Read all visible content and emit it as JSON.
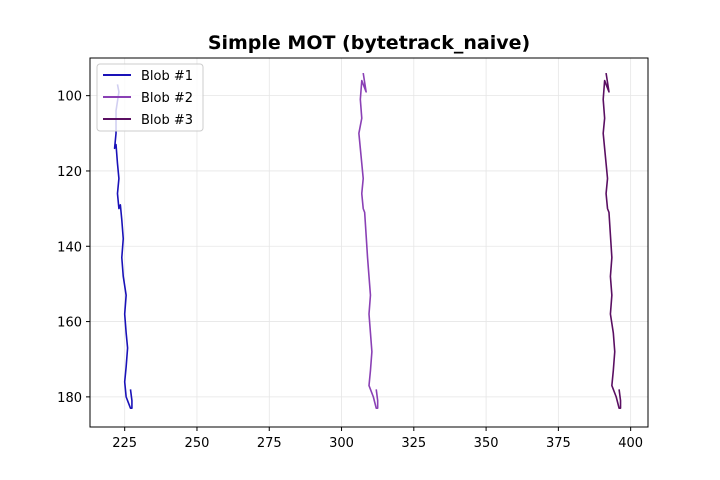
{
  "chart_data": {
    "type": "line",
    "title": "Simple MOT (bytetrack_naive)",
    "xlabel": "",
    "ylabel": "",
    "xlim": [
      213,
      406
    ],
    "ylim": [
      188,
      90
    ],
    "y_inverted": true,
    "grid": true,
    "legend_placement": "top-left",
    "x_ticks": [
      "225",
      "250",
      "275",
      "300",
      "325",
      "350",
      "375",
      "400"
    ],
    "y_ticks": [
      "100",
      "120",
      "140",
      "160",
      "180"
    ],
    "series": [
      {
        "name": "Blob #1",
        "color": "#1a12b8",
        "points": [
          [
            222.5,
            97
          ],
          [
            223.0,
            99
          ],
          [
            222.0,
            104
          ],
          [
            222.0,
            110
          ],
          [
            221.5,
            114
          ],
          [
            222.0,
            113
          ],
          [
            222.5,
            118
          ],
          [
            223.0,
            122
          ],
          [
            222.5,
            126
          ],
          [
            223.0,
            130
          ],
          [
            223.5,
            129
          ],
          [
            224.0,
            133
          ],
          [
            224.5,
            138
          ],
          [
            224.0,
            143
          ],
          [
            224.5,
            148
          ],
          [
            225.5,
            153
          ],
          [
            225.0,
            158
          ],
          [
            225.5,
            163
          ],
          [
            226.0,
            167
          ],
          [
            225.5,
            172
          ],
          [
            225.0,
            176
          ],
          [
            225.5,
            180
          ],
          [
            227.0,
            183
          ],
          [
            227.5,
            183
          ],
          [
            227.5,
            181
          ],
          [
            227.0,
            178
          ]
        ]
      },
      {
        "name": "Blob #2",
        "color": "#8a40b5",
        "points": [
          [
            307.5,
            94
          ],
          [
            308.5,
            99
          ],
          [
            307.0,
            96
          ],
          [
            306.5,
            101
          ],
          [
            307.0,
            106
          ],
          [
            306.0,
            110
          ],
          [
            306.5,
            114
          ],
          [
            307.0,
            118
          ],
          [
            307.5,
            122
          ],
          [
            307.0,
            126
          ],
          [
            307.5,
            130
          ],
          [
            308.0,
            131
          ],
          [
            308.5,
            137
          ],
          [
            309.0,
            143
          ],
          [
            309.5,
            148
          ],
          [
            310.0,
            153
          ],
          [
            309.5,
            158
          ],
          [
            310.0,
            163
          ],
          [
            310.5,
            168
          ],
          [
            310.0,
            173
          ],
          [
            309.5,
            177
          ],
          [
            311.0,
            180
          ],
          [
            312.0,
            183
          ],
          [
            312.5,
            183
          ],
          [
            312.5,
            181
          ],
          [
            312.0,
            178
          ]
        ]
      },
      {
        "name": "Blob #3",
        "color": "#5a0f62",
        "points": [
          [
            391.5,
            94
          ],
          [
            392.5,
            99
          ],
          [
            391.0,
            96
          ],
          [
            390.5,
            101
          ],
          [
            391.0,
            106
          ],
          [
            390.5,
            110
          ],
          [
            391.0,
            114
          ],
          [
            391.5,
            118
          ],
          [
            392.0,
            122
          ],
          [
            391.5,
            126
          ],
          [
            392.0,
            130
          ],
          [
            392.5,
            131
          ],
          [
            393.0,
            137
          ],
          [
            393.5,
            143
          ],
          [
            393.0,
            148
          ],
          [
            393.5,
            153
          ],
          [
            393.0,
            158
          ],
          [
            394.0,
            163
          ],
          [
            394.5,
            168
          ],
          [
            394.0,
            173
          ],
          [
            393.5,
            177
          ],
          [
            395.0,
            180
          ],
          [
            396.0,
            183
          ],
          [
            396.5,
            183
          ],
          [
            396.5,
            181
          ],
          [
            396.0,
            178
          ]
        ]
      }
    ]
  }
}
